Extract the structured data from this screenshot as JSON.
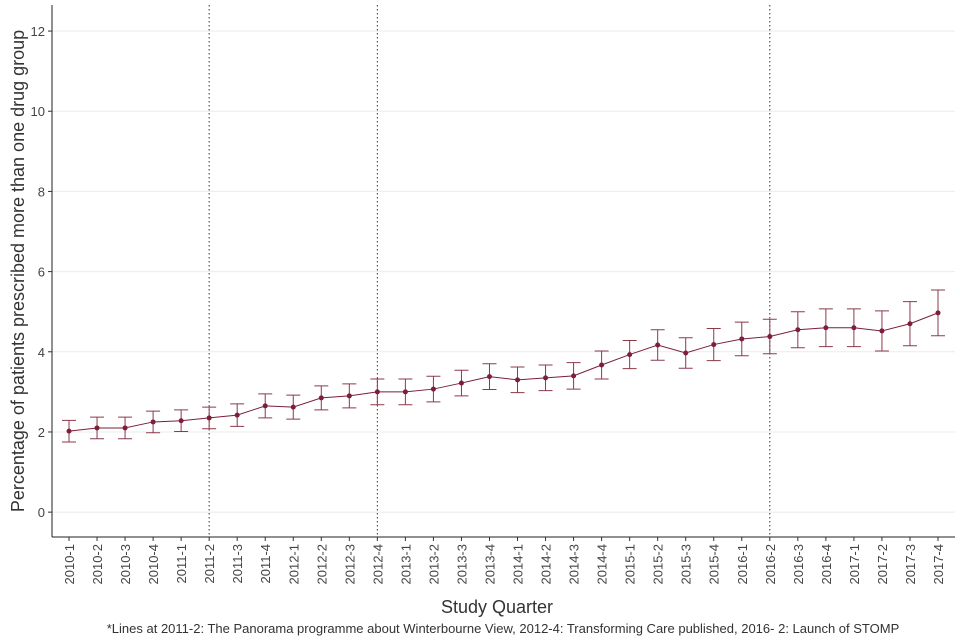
{
  "chart_data": {
    "type": "line",
    "x_label": "Study Quarter",
    "y_label": "Percentage of patients prescribed more than one drug group",
    "caption": "*Lines at 2011-2: The Panorama programme about Winterbourne View, 2012-4: Transforming Care published, 2016- 2: Launch of STOMP",
    "categories": [
      "2010-1",
      "2010-2",
      "2010-3",
      "2010-4",
      "2011-1",
      "2011-2",
      "2011-3",
      "2011-4",
      "2012-1",
      "2012-2",
      "2012-3",
      "2012-4",
      "2013-1",
      "2013-2",
      "2013-3",
      "2013-4",
      "2014-1",
      "2014-2",
      "2014-3",
      "2014-4",
      "2015-1",
      "2015-2",
      "2015-3",
      "2015-4",
      "2016-1",
      "2016-2",
      "2016-3",
      "2016-4",
      "2017-1",
      "2017-2",
      "2017-3",
      "2017-4"
    ],
    "series": [
      {
        "color": "#7b1f3a",
        "values": [
          2.02,
          2.1,
          2.1,
          2.25,
          2.28,
          2.35,
          2.42,
          2.65,
          2.62,
          2.85,
          2.9,
          3.0,
          3.0,
          3.07,
          3.22,
          3.38,
          3.3,
          3.35,
          3.4,
          3.67,
          3.93,
          4.17,
          3.97,
          4.18,
          4.32,
          4.38,
          4.55,
          4.6,
          4.6,
          4.52,
          4.7,
          4.97
        ],
        "error": [
          0.27,
          0.27,
          0.27,
          0.27,
          0.27,
          0.27,
          0.28,
          0.3,
          0.3,
          0.3,
          0.3,
          0.32,
          0.32,
          0.32,
          0.32,
          0.32,
          0.32,
          0.32,
          0.33,
          0.35,
          0.35,
          0.38,
          0.38,
          0.4,
          0.42,
          0.43,
          0.45,
          0.47,
          0.47,
          0.5,
          0.55,
          0.57
        ]
      }
    ],
    "vlines": [
      "2011-2",
      "2012-4",
      "2016-2"
    ],
    "ylim": [
      -0.62,
      12.65
    ],
    "yticks": [
      0,
      2,
      4,
      6,
      8,
      10,
      12
    ],
    "grid": true
  }
}
